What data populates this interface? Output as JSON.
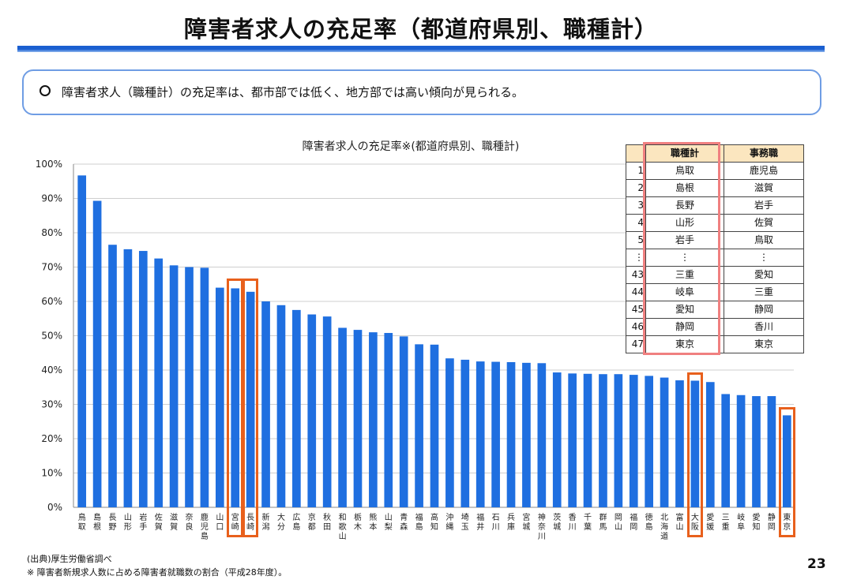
{
  "slide": {
    "title": "障害者求人の充足率（都道府県別、職種計）",
    "summary": "障害者求人（職種計）の充足率は、都市部では低く、地方部では高い傾向が見られる。",
    "source_note": "(出典)厚生労働省調べ",
    "footnote": "※ 障害者新規求人数に占める障害者就職数の割合（平成28年度）。",
    "page_number": "23"
  },
  "chart_data": {
    "type": "bar",
    "title": "障害者求人の充足率※(都道府県別、職種計)",
    "ylim": [
      0,
      100
    ],
    "yticks": [
      "0%",
      "10%",
      "20%",
      "30%",
      "40%",
      "50%",
      "60%",
      "70%",
      "80%",
      "90%",
      "100%"
    ],
    "grid": true,
    "bar_color": "#1f6fe0",
    "categories": [
      "鳥取",
      "島根",
      "長野",
      "山形",
      "岩手",
      "佐賀",
      "滋賀",
      "奈良",
      "鹿児島",
      "山口",
      "宮崎",
      "長崎",
      "新潟",
      "大分",
      "広島",
      "京都",
      "秋田",
      "和歌山",
      "栃木",
      "熊本",
      "山梨",
      "青森",
      "福島",
      "高知",
      "沖縄",
      "埼玉",
      "福井",
      "石川",
      "兵庫",
      "宮城",
      "神奈川",
      "茨城",
      "香川",
      "千葉",
      "群馬",
      "岡山",
      "福岡",
      "徳島",
      "北海道",
      "富山",
      "大阪",
      "愛媛",
      "三重",
      "岐阜",
      "愛知",
      "静岡",
      "東京"
    ],
    "values": [
      96.7,
      89.3,
      76.5,
      75.2,
      74.7,
      72.5,
      70.5,
      70.0,
      69.8,
      64.0,
      63.8,
      62.8,
      60.0,
      58.9,
      57.5,
      56.2,
      55.6,
      52.3,
      51.7,
      51.0,
      50.8,
      49.8,
      47.5,
      47.4,
      43.4,
      43.0,
      42.5,
      42.4,
      42.3,
      42.1,
      42.0,
      39.3,
      39.0,
      38.9,
      38.8,
      38.8,
      38.6,
      38.3,
      37.8,
      37.0,
      36.9,
      36.5,
      33.0,
      32.7,
      32.4,
      32.4,
      26.8
    ],
    "highlighted": [
      "宮崎",
      "長崎",
      "大阪",
      "東京"
    ]
  },
  "ranking_table": {
    "headers": [
      "",
      "職種計",
      "事務職"
    ],
    "rows": [
      [
        "1",
        "鳥取",
        "鹿児島"
      ],
      [
        "2",
        "島根",
        "滋賀"
      ],
      [
        "3",
        "長野",
        "岩手"
      ],
      [
        "4",
        "山形",
        "佐賀"
      ],
      [
        "5",
        "岩手",
        "鳥取"
      ],
      [
        "⋮",
        "⋮",
        "⋮"
      ],
      [
        "43",
        "三重",
        "愛知"
      ],
      [
        "44",
        "岐阜",
        "三重"
      ],
      [
        "45",
        "愛知",
        "静岡"
      ],
      [
        "46",
        "静岡",
        "香川"
      ],
      [
        "47",
        "東京",
        "東京"
      ]
    ]
  },
  "colors": {
    "accent": "#1a5fd0",
    "highlight_box": "#e8601c",
    "table_highlight": "#f08080",
    "table_header": "#fbe6bf"
  }
}
